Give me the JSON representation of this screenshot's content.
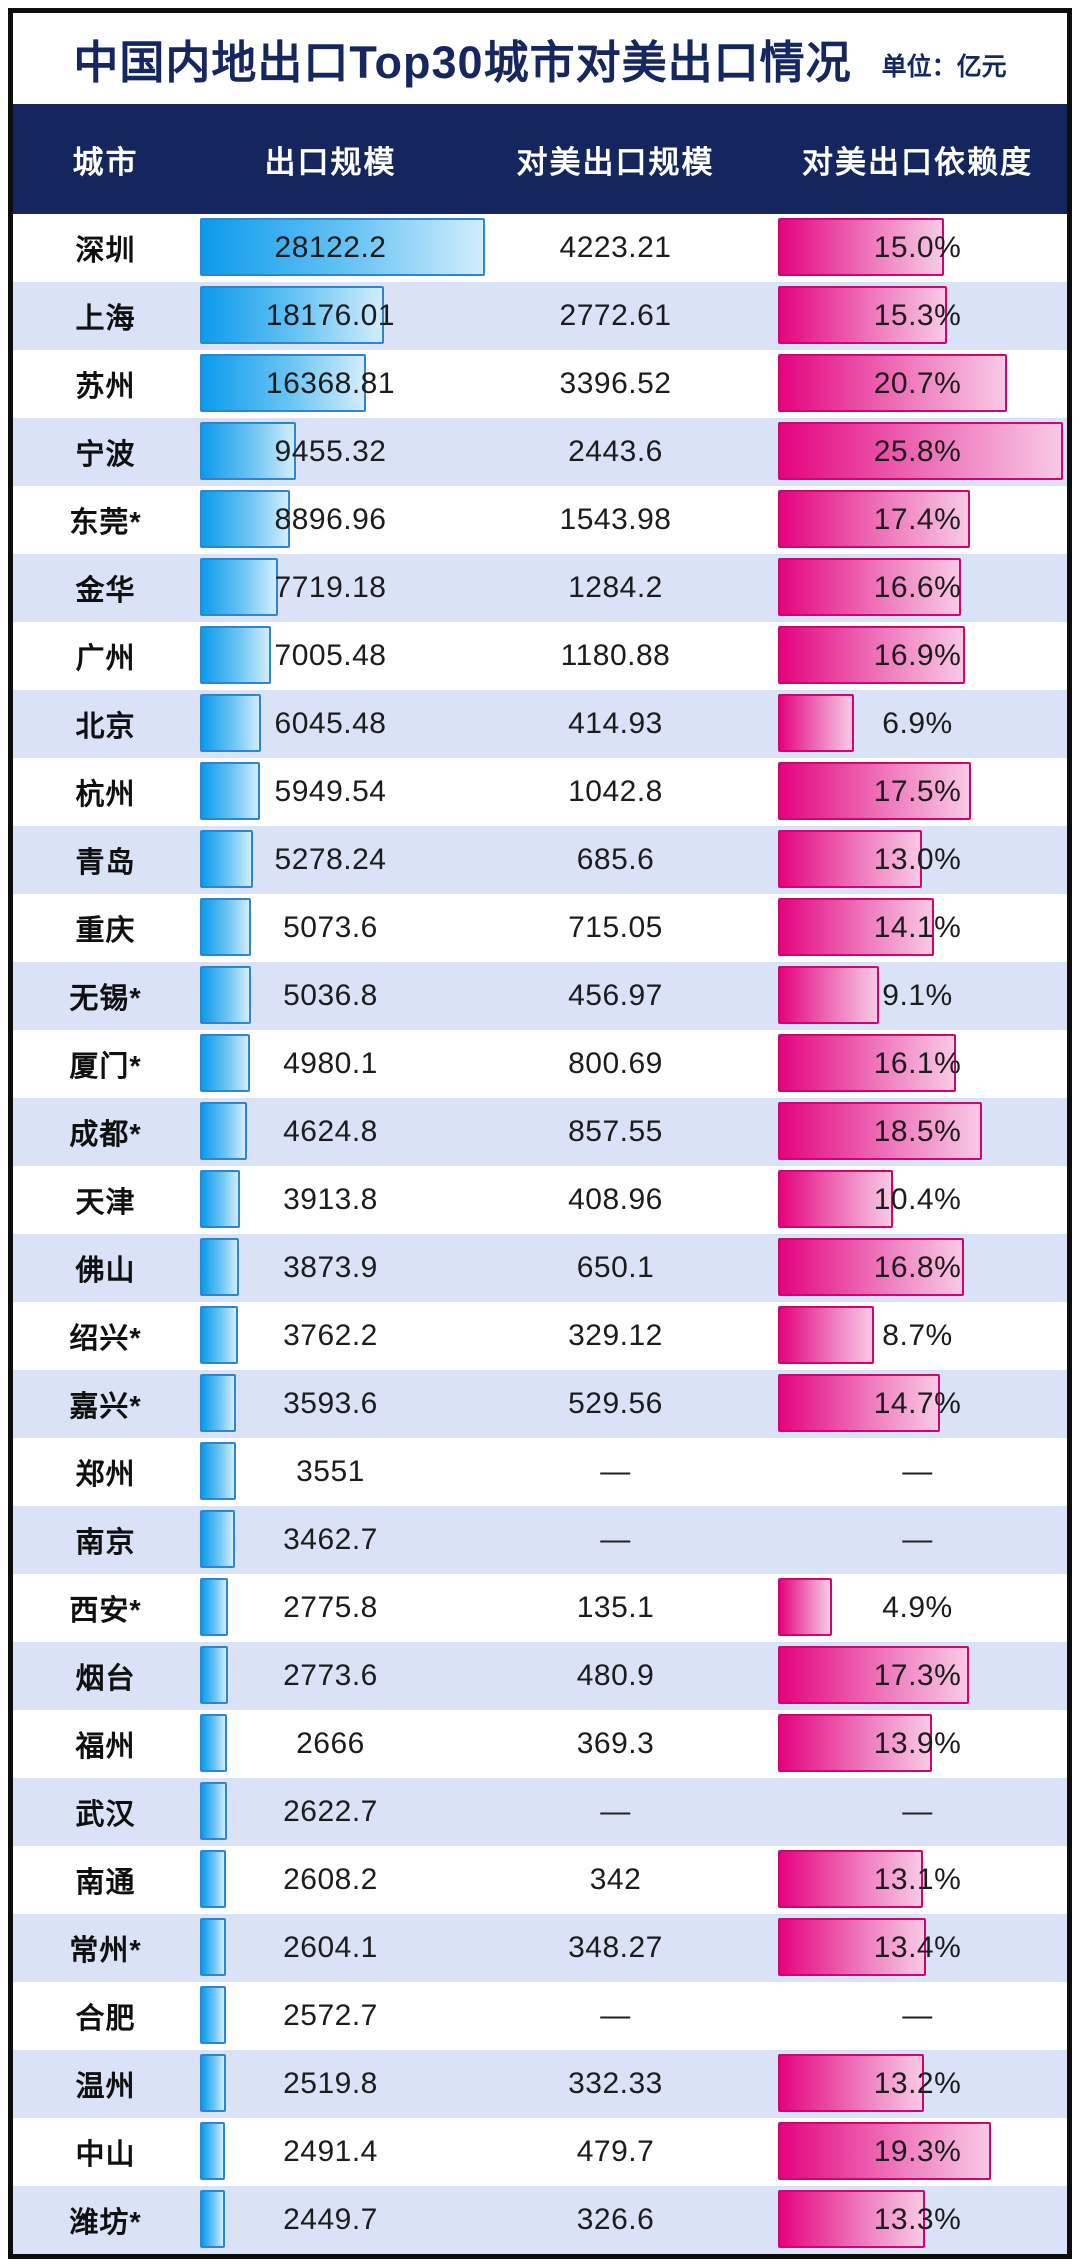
{
  "title": "中国内地出口Top30城市对美出口情况",
  "unit_label": "单位：亿元",
  "columns": [
    "城市",
    "出口规模",
    "对美出口规模",
    "对美出口依赖度"
  ],
  "colors": {
    "header_bg": "#15265e",
    "title_text": "#16265e",
    "alt_row_bg": "#d9e2f6",
    "blue_bar_start": "#0d9bec",
    "blue_bar_end": "#d2edfc",
    "blue_bar_border": "#2f86cd",
    "pink_bar_start": "#e4047f",
    "pink_bar_end": "#f8c9e5",
    "pink_bar_border": "#d10570",
    "frame_border": "#0d0d0d"
  },
  "chart_data": {
    "type": "bar",
    "title": "中国内地出口Top30城市对美出口情况",
    "unit": "亿元",
    "columns": [
      "城市",
      "出口规模",
      "对美出口规模",
      "对美出口依赖度"
    ],
    "max_export_scale": 28122.2,
    "max_dependency_pct": 25.8,
    "missing_marker": "—",
    "rows": [
      {
        "city": "深圳",
        "export": "28122.2",
        "us_export": "4223.21",
        "dependency": "15.0%"
      },
      {
        "city": "上海",
        "export": "18176.01",
        "us_export": "2772.61",
        "dependency": "15.3%"
      },
      {
        "city": "苏州",
        "export": "16368.81",
        "us_export": "3396.52",
        "dependency": "20.7%"
      },
      {
        "city": "宁波",
        "export": "9455.32",
        "us_export": "2443.6",
        "dependency": "25.8%"
      },
      {
        "city": "东莞*",
        "export": "8896.96",
        "us_export": "1543.98",
        "dependency": "17.4%"
      },
      {
        "city": "金华",
        "export": "7719.18",
        "us_export": "1284.2",
        "dependency": "16.6%"
      },
      {
        "city": "广州",
        "export": "7005.48",
        "us_export": "1180.88",
        "dependency": "16.9%"
      },
      {
        "city": "北京",
        "export": "6045.48",
        "us_export": "414.93",
        "dependency": "6.9%"
      },
      {
        "city": "杭州",
        "export": "5949.54",
        "us_export": "1042.8",
        "dependency": "17.5%"
      },
      {
        "city": "青岛",
        "export": "5278.24",
        "us_export": "685.6",
        "dependency": "13.0%"
      },
      {
        "city": "重庆",
        "export": "5073.6",
        "us_export": "715.05",
        "dependency": "14.1%"
      },
      {
        "city": "无锡*",
        "export": "5036.8",
        "us_export": "456.97",
        "dependency": "9.1%"
      },
      {
        "city": "厦门*",
        "export": "4980.1",
        "us_export": "800.69",
        "dependency": "16.1%"
      },
      {
        "city": "成都*",
        "export": "4624.8",
        "us_export": "857.55",
        "dependency": "18.5%"
      },
      {
        "city": "天津",
        "export": "3913.8",
        "us_export": "408.96",
        "dependency": "10.4%"
      },
      {
        "city": "佛山",
        "export": "3873.9",
        "us_export": "650.1",
        "dependency": "16.8%"
      },
      {
        "city": "绍兴*",
        "export": "3762.2",
        "us_export": "329.12",
        "dependency": "8.7%"
      },
      {
        "city": "嘉兴*",
        "export": "3593.6",
        "us_export": "529.56",
        "dependency": "14.7%"
      },
      {
        "city": "郑州",
        "export": "3551",
        "us_export": "—",
        "dependency": "—"
      },
      {
        "city": "南京",
        "export": "3462.7",
        "us_export": "—",
        "dependency": "—"
      },
      {
        "city": "西安*",
        "export": "2775.8",
        "us_export": "135.1",
        "dependency": "4.9%"
      },
      {
        "city": "烟台",
        "export": "2773.6",
        "us_export": "480.9",
        "dependency": "17.3%"
      },
      {
        "city": "福州",
        "export": "2666",
        "us_export": "369.3",
        "dependency": "13.9%"
      },
      {
        "city": "武汉",
        "export": "2622.7",
        "us_export": "—",
        "dependency": "—"
      },
      {
        "city": "南通",
        "export": "2608.2",
        "us_export": "342",
        "dependency": "13.1%"
      },
      {
        "city": "常州*",
        "export": "2604.1",
        "us_export": "348.27",
        "dependency": "13.4%"
      },
      {
        "city": "合肥",
        "export": "2572.7",
        "us_export": "—",
        "dependency": "—"
      },
      {
        "city": "温州",
        "export": "2519.8",
        "us_export": "332.33",
        "dependency": "13.2%"
      },
      {
        "city": "中山",
        "export": "2491.4",
        "us_export": "479.7",
        "dependency": "19.3%"
      },
      {
        "city": "潍坊*",
        "export": "2449.7",
        "us_export": "326.6",
        "dependency": "13.3%"
      }
    ]
  }
}
